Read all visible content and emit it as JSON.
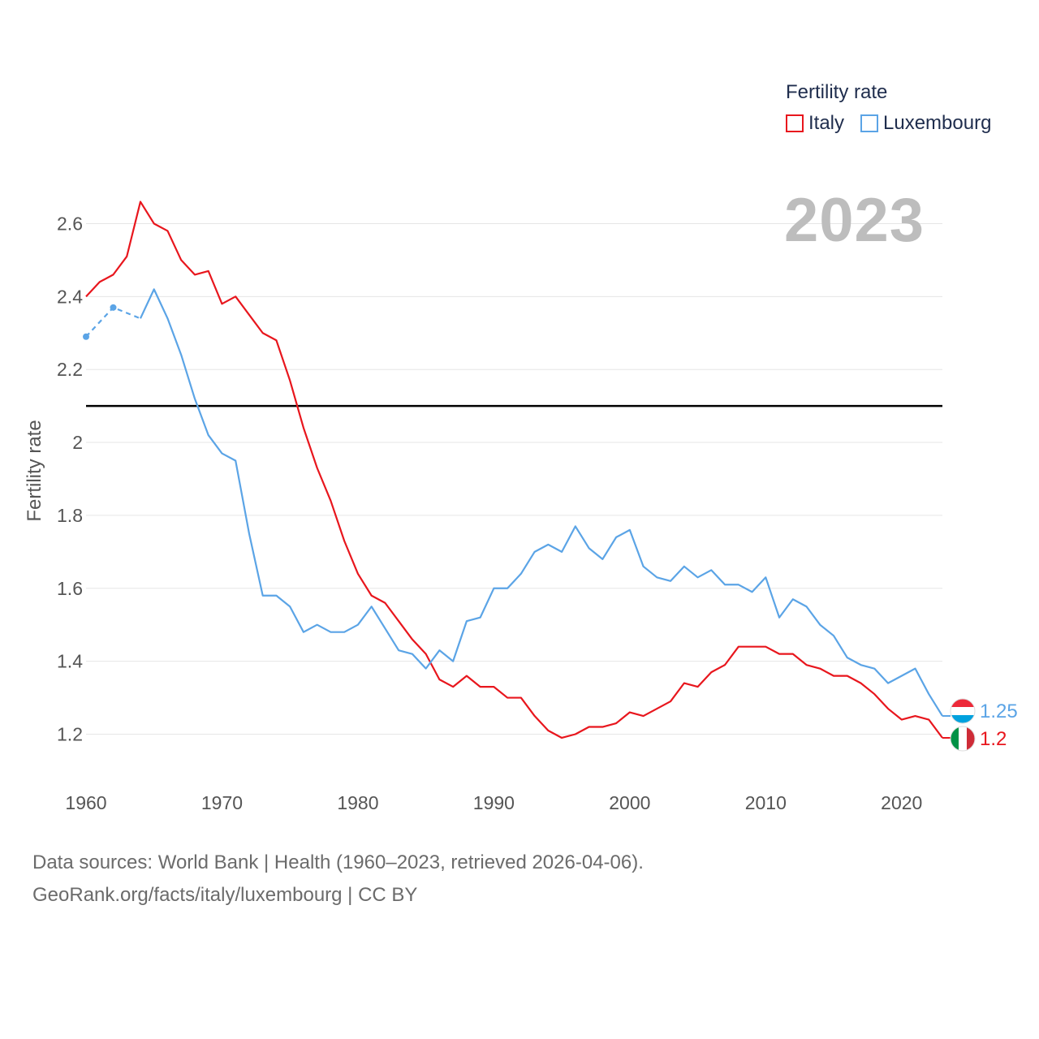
{
  "chart_data": {
    "type": "line",
    "title": "",
    "xlabel": "",
    "ylabel": "Fertility rate",
    "xlim": [
      1960,
      2023
    ],
    "ylim": [
      1.1,
      2.72
    ],
    "xticks": [
      1960,
      1970,
      1980,
      1990,
      2000,
      2010,
      2020
    ],
    "yticks": [
      1.2,
      1.4,
      1.6,
      1.8,
      2,
      2.2,
      2.4,
      2.6
    ],
    "reference_line": 2.1,
    "current_year": "2023",
    "legend_title": "Fertility rate",
    "series": [
      {
        "name": "Italy",
        "color": "#e8161d",
        "end_label": "1.2",
        "flag": "italy-flag",
        "x": [
          1960,
          1961,
          1962,
          1963,
          1964,
          1965,
          1966,
          1967,
          1968,
          1969,
          1970,
          1971,
          1972,
          1973,
          1974,
          1975,
          1976,
          1977,
          1978,
          1979,
          1980,
          1981,
          1982,
          1983,
          1984,
          1985,
          1986,
          1987,
          1988,
          1989,
          1990,
          1991,
          1992,
          1993,
          1994,
          1995,
          1996,
          1997,
          1998,
          1999,
          2000,
          2001,
          2002,
          2003,
          2004,
          2005,
          2006,
          2007,
          2008,
          2009,
          2010,
          2011,
          2012,
          2013,
          2014,
          2015,
          2016,
          2017,
          2018,
          2019,
          2020,
          2021,
          2022,
          2023
        ],
        "values": [
          2.4,
          2.44,
          2.46,
          2.51,
          2.66,
          2.6,
          2.58,
          2.5,
          2.46,
          2.47,
          2.38,
          2.4,
          2.35,
          2.3,
          2.28,
          2.17,
          2.04,
          1.93,
          1.84,
          1.73,
          1.64,
          1.58,
          1.56,
          1.51,
          1.46,
          1.42,
          1.35,
          1.33,
          1.36,
          1.33,
          1.33,
          1.3,
          1.3,
          1.25,
          1.21,
          1.19,
          1.2,
          1.22,
          1.22,
          1.23,
          1.26,
          1.25,
          1.27,
          1.29,
          1.34,
          1.33,
          1.37,
          1.39,
          1.44,
          1.44,
          1.44,
          1.42,
          1.42,
          1.39,
          1.38,
          1.36,
          1.36,
          1.34,
          1.31,
          1.27,
          1.24,
          1.25,
          1.24,
          1.19
        ]
      },
      {
        "name": "Luxembourg",
        "color": "#5ba4e6",
        "end_label": "1.25",
        "flag": "luxembourg-flag",
        "dashed_x": [
          1960,
          1962,
          1964
        ],
        "dashed_values": [
          2.29,
          2.37,
          2.34
        ],
        "x": [
          1964,
          1965,
          1966,
          1967,
          1968,
          1969,
          1970,
          1971,
          1972,
          1973,
          1974,
          1975,
          1976,
          1977,
          1978,
          1979,
          1980,
          1981,
          1982,
          1983,
          1984,
          1985,
          1986,
          1987,
          1988,
          1989,
          1990,
          1991,
          1992,
          1993,
          1994,
          1995,
          1996,
          1997,
          1998,
          1999,
          2000,
          2001,
          2002,
          2003,
          2004,
          2005,
          2006,
          2007,
          2008,
          2009,
          2010,
          2011,
          2012,
          2013,
          2014,
          2015,
          2016,
          2017,
          2018,
          2019,
          2020,
          2021,
          2022,
          2023
        ],
        "values": [
          2.34,
          2.42,
          2.34,
          2.24,
          2.12,
          2.02,
          1.97,
          1.95,
          1.75,
          1.58,
          1.58,
          1.55,
          1.48,
          1.5,
          1.48,
          1.48,
          1.5,
          1.55,
          1.49,
          1.43,
          1.42,
          1.38,
          1.43,
          1.4,
          1.51,
          1.52,
          1.6,
          1.6,
          1.64,
          1.7,
          1.72,
          1.7,
          1.77,
          1.71,
          1.68,
          1.74,
          1.76,
          1.66,
          1.63,
          1.62,
          1.66,
          1.63,
          1.65,
          1.61,
          1.61,
          1.59,
          1.63,
          1.52,
          1.57,
          1.55,
          1.5,
          1.47,
          1.41,
          1.39,
          1.38,
          1.34,
          1.36,
          1.38,
          1.31,
          1.25
        ]
      }
    ]
  },
  "footer": {
    "line1": "Data sources: World Bank | Health (1960–2023, retrieved 2026-04-06).",
    "line2": "GeoRank.org/facts/italy/luxembourg | CC BY"
  }
}
